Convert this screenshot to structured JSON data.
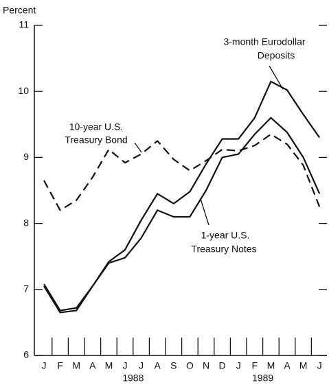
{
  "chart_data": {
    "type": "line",
    "y_label": "Percent",
    "categories": [
      "J",
      "F",
      "M",
      "A",
      "M",
      "J",
      "J",
      "A",
      "S",
      "O",
      "N",
      "D",
      "J",
      "F",
      "M",
      "A",
      "M",
      "J"
    ],
    "years": [
      "1988",
      "1989"
    ],
    "ylim": [
      6,
      11
    ],
    "yticks": [
      6,
      7,
      8,
      9,
      10,
      11
    ],
    "series": [
      {
        "name": "3-month Eurodollar Deposits",
        "color": "#111111",
        "dashed": false,
        "values": [
          7.08,
          6.68,
          6.72,
          7.05,
          7.42,
          7.6,
          8.05,
          8.45,
          8.3,
          8.48,
          8.9,
          9.28,
          9.28,
          9.6,
          10.15,
          10.02,
          9.65,
          9.3
        ]
      },
      {
        "name": "1-year U.S. Treasury Notes",
        "color": "#111111",
        "dashed": false,
        "values": [
          7.05,
          6.65,
          6.68,
          7.05,
          7.4,
          7.48,
          7.78,
          8.2,
          8.1,
          8.1,
          8.5,
          9.0,
          9.05,
          9.35,
          9.6,
          9.38,
          9.0,
          8.45
        ]
      },
      {
        "name": "10-year U.S. Treasury Bond",
        "color": "#111111",
        "dashed": true,
        "values": [
          8.65,
          8.2,
          8.35,
          8.7,
          9.12,
          8.92,
          9.05,
          9.25,
          8.97,
          8.8,
          8.95,
          9.12,
          9.1,
          9.18,
          9.35,
          9.2,
          8.88,
          8.25
        ]
      }
    ],
    "annotations": [
      {
        "lines": [
          "3-month Eurodollar",
          "Deposits"
        ]
      },
      {
        "lines": [
          "10-year U.S.",
          "Treasury Bond"
        ]
      },
      {
        "lines": [
          "1-year U.S.",
          "Treasury Notes"
        ]
      }
    ]
  }
}
